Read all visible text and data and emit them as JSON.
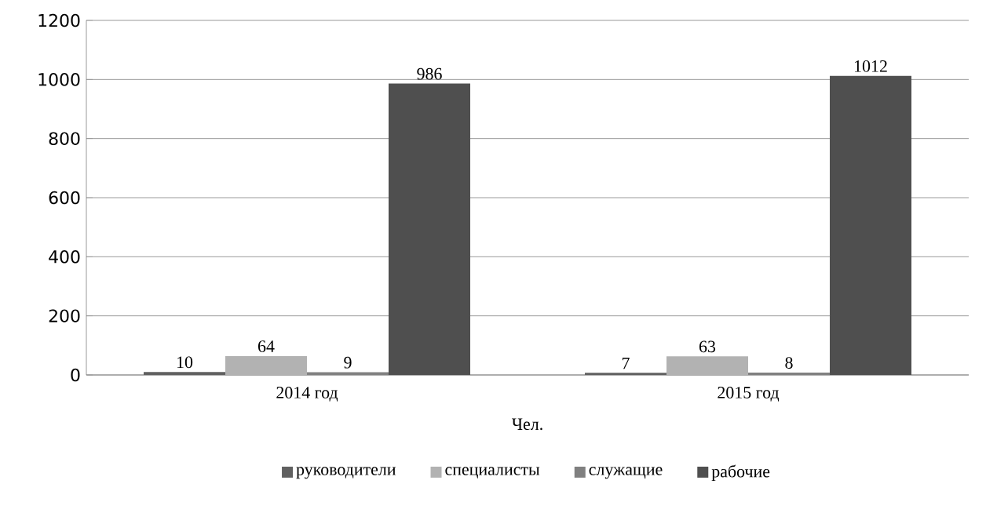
{
  "chart_data": {
    "type": "bar",
    "xlabel": "Чел.",
    "categories": [
      "2014 год",
      "2015 год"
    ],
    "series": [
      {
        "name": "руководители",
        "color": "#606060",
        "values": [
          10,
          7
        ]
      },
      {
        "name": "специалисты",
        "color": "#b2b2b2",
        "values": [
          64,
          63
        ]
      },
      {
        "name": "служащие",
        "color": "#808080",
        "values": [
          9,
          8
        ]
      },
      {
        "name": "рабочие",
        "color": "#4f4f4f",
        "values": [
          986,
          1012
        ]
      }
    ],
    "ylim": [
      0,
      1200
    ],
    "yticks": [
      0,
      200,
      400,
      600,
      800,
      1000,
      1200
    ],
    "grid": "y",
    "legend": "bottom",
    "data_labels": true
  }
}
